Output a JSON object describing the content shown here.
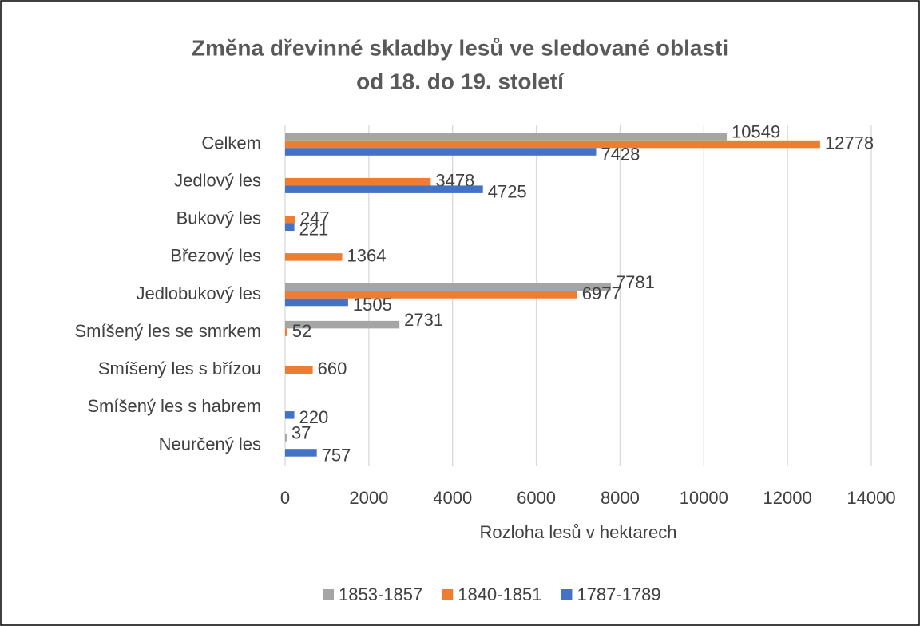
{
  "chart_data": {
    "type": "bar",
    "orientation": "horizontal",
    "title": [
      "Změna dřevinné skladby lesů ve sledované oblasti",
      "od 18. do 19. století"
    ],
    "x_label": "Rozloha lesů v hektarech",
    "categories": [
      "Celkem",
      "Jedlový les",
      "Bukový les",
      "Březový les",
      "Jedlobukový les",
      "Smíšený les se smrkem",
      "Smíšený les s břízou",
      "Smíšený les s habrem",
      "Neurčený les"
    ],
    "series": [
      {
        "name": "1853-1857",
        "color": "#a5a5a5",
        "values": [
          10549,
          null,
          null,
          null,
          7781,
          2731,
          null,
          null,
          37
        ]
      },
      {
        "name": "1840-1851",
        "color": "#ed7d31",
        "values": [
          12778,
          3478,
          247,
          1364,
          6977,
          52,
          660,
          null,
          null
        ]
      },
      {
        "name": "1787-1789",
        "color": "#4472c4",
        "values": [
          7428,
          4725,
          221,
          null,
          1505,
          null,
          null,
          220,
          757
        ]
      }
    ],
    "xlim": [
      0,
      14000
    ],
    "xticks": [
      0,
      2000,
      4000,
      6000,
      8000,
      10000,
      12000,
      14000
    ],
    "grid": true,
    "legend": "bottom"
  }
}
